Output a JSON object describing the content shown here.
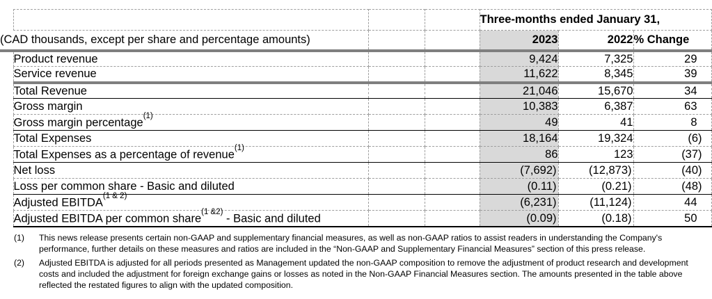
{
  "table": {
    "period_header": "Three-months ended January 31,",
    "caption": "(CAD thousands, except per share and percentage amounts)",
    "columns": {
      "col_2023": "2023",
      "col_2022": "2022",
      "col_change": "% Change"
    },
    "rows": [
      {
        "label": "Product revenue",
        "sup": "",
        "tail": "",
        "v2023": "9,424",
        "v2022": "7,325",
        "change": "29",
        "bottom": "dashed"
      },
      {
        "label": "Service revenue",
        "sup": "",
        "tail": "",
        "v2023": "11,622",
        "v2022": "8,345",
        "change": "39",
        "bottom": "thick"
      },
      {
        "label": "Total Revenue",
        "sup": "",
        "tail": "",
        "v2023": "21,046",
        "v2022": "15,670",
        "change": "34",
        "bottom": "solid"
      },
      {
        "label": "Gross margin",
        "sup": "",
        "tail": "",
        "v2023": "10,383",
        "v2022": "6,387",
        "change": "63",
        "bottom": "dashed"
      },
      {
        "label": "Gross margin percentage",
        "sup": "(1)",
        "tail": "",
        "v2023": "49",
        "v2022": "41",
        "change": "8",
        "bottom": "solid"
      },
      {
        "label": "Total Expenses",
        "sup": "",
        "tail": "",
        "v2023": "18,164",
        "v2022": "19,324",
        "change": "(6)",
        "bottom": "dashed"
      },
      {
        "label": "Total Expenses as a percentage of revenue",
        "sup": "(1)",
        "tail": "",
        "v2023": "86",
        "v2022": "123",
        "change": "(37)",
        "bottom": "solid"
      },
      {
        "label": "Net loss",
        "sup": "",
        "tail": "",
        "v2023": "(7,692)",
        "v2022": "(12,873)",
        "change": "(40)",
        "bottom": "dashed"
      },
      {
        "label": "Loss per common share - Basic and diluted",
        "sup": "",
        "tail": "",
        "v2023": "(0.11)",
        "v2022": "(0.21)",
        "change": "(48)",
        "bottom": "solid"
      },
      {
        "label": "Adjusted EBITDA",
        "sup": "(1 & 2)",
        "tail": "",
        "v2023": "(6,231)",
        "v2022": "(11,124)",
        "change": "44",
        "bottom": "dashed"
      },
      {
        "label": "Adjusted EBITDA per common share",
        "sup": "(1 &2)",
        "tail": " - Basic and diluted",
        "v2023": "(0.09)",
        "v2022": "(0.18)",
        "change": "50",
        "bottom": "end"
      }
    ]
  },
  "footnotes": [
    {
      "num": "(1)",
      "lines": [
        "This news release presents certain non-GAAP and supplementary financial measures, as well as non-GAAP ratios to assist readers in understanding the Company's",
        "performance, further details on these measures and ratios are included in the “Non-GAAP and Supplementary Financial Measures” section of this press release."
      ]
    },
    {
      "num": "(2)",
      "lines": [
        "Adjusted EBITDA is adjusted for all periods presented as Management updated the non-GAAP composition to remove the adjustment of product research and development",
        "costs and included the adjustment for foreign exchange gains or losses as noted in the Non-GAAP Financial Measures section. The amounts presented in the table above",
        "reflected the restated figures to align with the updated composition."
      ]
    }
  ],
  "colors": {
    "shade_2023_column": "#d9d9d9",
    "thick_rule": "#7f7f7f",
    "dashed_grid": "#9e9e9e",
    "solid_rule": "#000000"
  }
}
